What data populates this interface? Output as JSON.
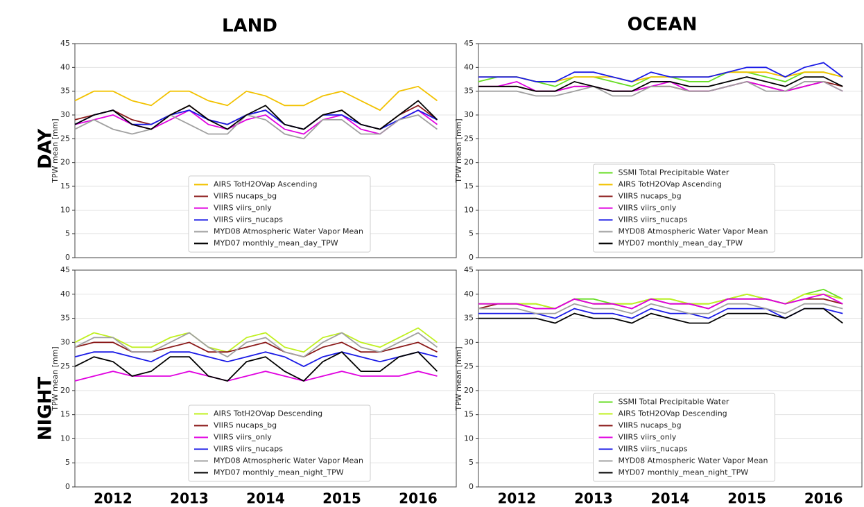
{
  "column_titles": [
    "LAND",
    "OCEAN"
  ],
  "row_titles": [
    "DAY",
    "NIGHT"
  ],
  "chart_data": [
    {
      "type": "line",
      "ylabel": "TPW mean [mm]",
      "x": [
        2012,
        2012.25,
        2012.5,
        2012.75,
        2013,
        2013.25,
        2013.5,
        2013.75,
        2014,
        2014.25,
        2014.5,
        2014.75,
        2015,
        2015.25,
        2015.5,
        2015.75,
        2016,
        2016.25,
        2016.5,
        2016.75
      ],
      "xlim": [
        2012,
        2017
      ],
      "ylim": [
        0,
        45
      ],
      "yticks": [
        0,
        5,
        10,
        15,
        20,
        25,
        30,
        35,
        40,
        45
      ],
      "grid": true,
      "legend": "lower center",
      "series": [
        {
          "name": "AIRS TotH2OVap Ascending",
          "color": "#f2c200",
          "values": [
            33,
            35,
            35,
            33,
            32,
            35,
            35,
            33,
            32,
            35,
            34,
            32,
            32,
            34,
            35,
            33,
            31,
            35,
            36,
            33
          ]
        },
        {
          "name": "VIIRS nucaps_bg",
          "color": "#8b1a1a",
          "values": [
            29,
            30,
            31,
            29,
            28,
            30,
            32,
            29,
            28,
            30,
            31,
            28,
            27,
            30,
            31,
            28,
            27,
            30,
            32,
            29
          ]
        },
        {
          "name": "VIIRS viirs_only",
          "color": "#e000e0",
          "values": [
            28,
            29,
            30,
            28,
            27,
            29,
            31,
            28,
            27,
            29,
            30,
            27,
            26,
            29,
            30,
            27,
            26,
            29,
            31,
            28
          ]
        },
        {
          "name": "VIIRS viirs_nucaps",
          "color": "#1a1ae6",
          "values": [
            28,
            30,
            31,
            28,
            28,
            30,
            31,
            29,
            28,
            30,
            31,
            28,
            27,
            30,
            30,
            28,
            27,
            29,
            31,
            29
          ]
        },
        {
          "name": "MYD08 Atmospheric Water Vapor Mean",
          "color": "#a0a0a0",
          "values": [
            27,
            29,
            27,
            26,
            27,
            30,
            28,
            26,
            26,
            30,
            29,
            26,
            25,
            29,
            29,
            26,
            26,
            29,
            30,
            27
          ]
        },
        {
          "name": "MYD07 monthly_mean_day_TPW",
          "color": "#000000",
          "values": [
            28,
            30,
            31,
            28,
            27,
            30,
            32,
            29,
            27,
            30,
            32,
            28,
            27,
            30,
            31,
            28,
            27,
            30,
            33,
            29
          ]
        }
      ]
    },
    {
      "type": "line",
      "ylabel": "TPW mean [mm]",
      "x": [
        2012,
        2012.25,
        2012.5,
        2012.75,
        2013,
        2013.25,
        2013.5,
        2013.75,
        2014,
        2014.25,
        2014.5,
        2014.75,
        2015,
        2015.25,
        2015.5,
        2015.75,
        2016,
        2016.25,
        2016.5,
        2016.75
      ],
      "xlim": [
        2012,
        2017
      ],
      "ylim": [
        0,
        45
      ],
      "yticks": [
        0,
        5,
        10,
        15,
        20,
        25,
        30,
        35,
        40,
        45
      ],
      "grid": true,
      "legend": "lower center",
      "series": [
        {
          "name": "SSMI Total Precipitable Water",
          "color": "#66dd22",
          "values": [
            37,
            38,
            38,
            37,
            36,
            38,
            38,
            37,
            36,
            38,
            38,
            37,
            37,
            39,
            39,
            38,
            37,
            39,
            39,
            38
          ]
        },
        {
          "name": "AIRS TotH2OVap Ascending",
          "color": "#f2c200",
          "values": [
            38,
            38,
            38,
            37,
            37,
            38,
            38,
            38,
            37,
            38,
            38,
            38,
            38,
            39,
            39,
            39,
            38,
            39,
            39,
            38
          ]
        },
        {
          "name": "VIIRS nucaps_bg",
          "color": "#8b1a1a",
          "values": [
            36,
            36,
            36,
            35,
            35,
            36,
            36,
            35,
            35,
            36,
            36,
            35,
            35,
            36,
            37,
            36,
            35,
            36,
            37,
            36
          ]
        },
        {
          "name": "VIIRS viirs_only",
          "color": "#e000e0",
          "values": [
            36,
            36,
            37,
            35,
            35,
            36,
            36,
            35,
            35,
            36,
            37,
            35,
            35,
            36,
            37,
            36,
            35,
            36,
            37,
            35
          ]
        },
        {
          "name": "VIIRS viirs_nucaps",
          "color": "#1a1ae6",
          "values": [
            38,
            38,
            38,
            37,
            37,
            39,
            39,
            38,
            37,
            39,
            38,
            38,
            38,
            39,
            40,
            40,
            38,
            40,
            41,
            38
          ]
        },
        {
          "name": "MYD08 Atmospheric Water Vapor Mean",
          "color": "#a0a0a0",
          "values": [
            35,
            35,
            35,
            34,
            34,
            35,
            36,
            34,
            34,
            36,
            36,
            35,
            35,
            36,
            37,
            35,
            35,
            37,
            37,
            35
          ]
        },
        {
          "name": "MYD07 monthly_mean_day_TPW",
          "color": "#000000",
          "values": [
            36,
            36,
            36,
            35,
            35,
            37,
            36,
            35,
            35,
            37,
            37,
            36,
            36,
            37,
            38,
            37,
            36,
            38,
            38,
            36
          ]
        }
      ]
    },
    {
      "type": "line",
      "ylabel": "TPW mean [mm]",
      "x": [
        2012,
        2012.25,
        2012.5,
        2012.75,
        2013,
        2013.25,
        2013.5,
        2013.75,
        2014,
        2014.25,
        2014.5,
        2014.75,
        2015,
        2015.25,
        2015.5,
        2015.75,
        2016,
        2016.25,
        2016.5,
        2016.75
      ],
      "xlim": [
        2012,
        2017
      ],
      "xticks": [
        {
          "value": 2012.5,
          "label": "2012"
        },
        {
          "value": 2013.5,
          "label": "2013"
        },
        {
          "value": 2014.5,
          "label": "2014"
        },
        {
          "value": 2015.5,
          "label": "2015"
        },
        {
          "value": 2016.5,
          "label": "2016"
        }
      ],
      "ylim": [
        0,
        45
      ],
      "yticks": [
        0,
        5,
        10,
        15,
        20,
        25,
        30,
        35,
        40,
        45
      ],
      "grid": true,
      "legend": "lower center",
      "series": [
        {
          "name": "AIRS TotH2OVap Descending",
          "color": "#c0f020",
          "values": [
            30,
            32,
            31,
            29,
            29,
            31,
            32,
            29,
            28,
            31,
            32,
            29,
            28,
            31,
            32,
            30,
            29,
            31,
            33,
            30
          ]
        },
        {
          "name": "VIIRS nucaps_bg",
          "color": "#8b1a1a",
          "values": [
            29,
            30,
            30,
            28,
            28,
            29,
            30,
            28,
            28,
            29,
            30,
            28,
            27,
            29,
            30,
            28,
            28,
            29,
            30,
            28
          ]
        },
        {
          "name": "VIIRS viirs_only",
          "color": "#e000e0",
          "values": [
            22,
            23,
            24,
            23,
            23,
            23,
            24,
            23,
            22,
            23,
            24,
            23,
            22,
            23,
            24,
            23,
            23,
            23,
            24,
            23
          ]
        },
        {
          "name": "VIIRS viirs_nucaps",
          "color": "#1a1ae6",
          "values": [
            27,
            28,
            28,
            27,
            26,
            28,
            28,
            27,
            26,
            27,
            28,
            27,
            25,
            27,
            28,
            27,
            26,
            27,
            28,
            27
          ]
        },
        {
          "name": "MYD08 Atmospheric Water Vapor Mean",
          "color": "#a0a0a0",
          "values": [
            29,
            31,
            31,
            28,
            28,
            30,
            32,
            29,
            27,
            30,
            31,
            28,
            27,
            30,
            32,
            29,
            28,
            30,
            32,
            29
          ]
        },
        {
          "name": "MYD07 monthly_mean_night_TPW",
          "color": "#000000",
          "values": [
            25,
            27,
            26,
            23,
            24,
            27,
            27,
            23,
            22,
            26,
            27,
            24,
            22,
            26,
            28,
            24,
            24,
            27,
            28,
            24
          ]
        }
      ]
    },
    {
      "type": "line",
      "ylabel": "TPW mean [mm]",
      "x": [
        2012,
        2012.25,
        2012.5,
        2012.75,
        2013,
        2013.25,
        2013.5,
        2013.75,
        2014,
        2014.25,
        2014.5,
        2014.75,
        2015,
        2015.25,
        2015.5,
        2015.75,
        2016,
        2016.25,
        2016.5,
        2016.75
      ],
      "xlim": [
        2012,
        2017
      ],
      "xticks": [
        {
          "value": 2012.5,
          "label": "2012"
        },
        {
          "value": 2013.5,
          "label": "2013"
        },
        {
          "value": 2014.5,
          "label": "2014"
        },
        {
          "value": 2015.5,
          "label": "2015"
        },
        {
          "value": 2016.5,
          "label": "2016"
        }
      ],
      "ylim": [
        0,
        45
      ],
      "yticks": [
        0,
        5,
        10,
        15,
        20,
        25,
        30,
        35,
        40,
        45
      ],
      "grid": true,
      "legend": "lower center",
      "series": [
        {
          "name": "SSMI Total Precipitable Water",
          "color": "#66dd22",
          "values": [
            38,
            38,
            38,
            38,
            37,
            39,
            39,
            38,
            38,
            39,
            39,
            38,
            38,
            39,
            40,
            39,
            38,
            40,
            41,
            39
          ]
        },
        {
          "name": "AIRS TotH2OVap Descending",
          "color": "#c0f020",
          "values": [
            38,
            38,
            38,
            38,
            37,
            39,
            38,
            38,
            38,
            39,
            39,
            38,
            38,
            39,
            40,
            39,
            38,
            40,
            40,
            39
          ]
        },
        {
          "name": "VIIRS nucaps_bg",
          "color": "#8b1a1a",
          "values": [
            37,
            38,
            38,
            37,
            37,
            39,
            38,
            38,
            37,
            39,
            38,
            38,
            37,
            39,
            39,
            39,
            38,
            39,
            39,
            38
          ]
        },
        {
          "name": "VIIRS viirs_only",
          "color": "#e000e0",
          "values": [
            38,
            38,
            38,
            37,
            37,
            39,
            38,
            38,
            37,
            39,
            38,
            38,
            37,
            39,
            39,
            39,
            38,
            39,
            40,
            38
          ]
        },
        {
          "name": "VIIRS viirs_nucaps",
          "color": "#1a1ae6",
          "values": [
            36,
            36,
            36,
            36,
            35,
            37,
            36,
            36,
            35,
            37,
            36,
            36,
            35,
            37,
            37,
            37,
            35,
            37,
            37,
            36
          ]
        },
        {
          "name": "MYD08 Atmospheric Water Vapor Mean",
          "color": "#a0a0a0",
          "values": [
            37,
            37,
            37,
            36,
            36,
            38,
            37,
            37,
            36,
            38,
            37,
            36,
            36,
            38,
            38,
            37,
            36,
            38,
            38,
            37
          ]
        },
        {
          "name": "MYD07 monthly_mean_night_TPW",
          "color": "#000000",
          "values": [
            35,
            35,
            35,
            35,
            34,
            36,
            35,
            35,
            34,
            36,
            35,
            34,
            34,
            36,
            36,
            36,
            35,
            37,
            37,
            34
          ]
        }
      ]
    }
  ]
}
